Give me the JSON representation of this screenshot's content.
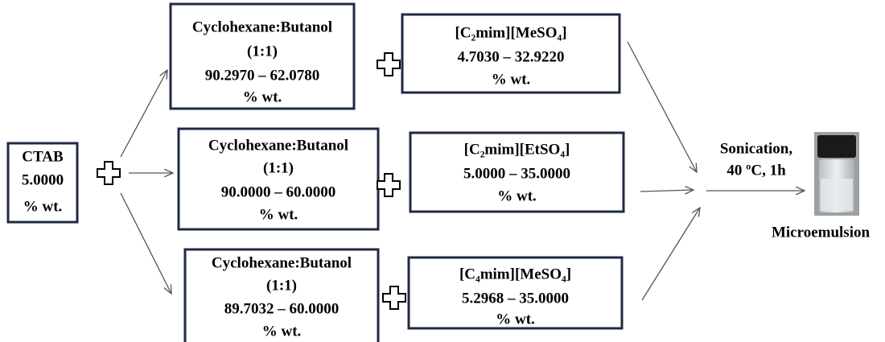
{
  "surfactant": {
    "name": "CTAB",
    "amount": "5.0000",
    "unit": "% wt."
  },
  "rows": [
    {
      "oil": {
        "name": "Cyclohexane:Butanol",
        "ratio": "(1:1)",
        "range": "90.2970 – 62.0780",
        "unit": "% wt."
      },
      "ionic_liquid": {
        "name": "[C₂mim][MeSO₄]",
        "range": "4.7030 – 32.9220",
        "unit": "% wt."
      }
    },
    {
      "oil": {
        "name": "Cyclohexane:Butanol",
        "ratio": "(1:1)",
        "range": "90.0000 – 60.0000",
        "unit": "% wt."
      },
      "ionic_liquid": {
        "name": "[C₂mim][EtSO₄]",
        "range": "5.0000 – 35.0000",
        "unit": "% wt."
      }
    },
    {
      "oil": {
        "name": "Cyclohexane:Butanol",
        "ratio": "(1:1)",
        "range": "89.7032 – 60.0000",
        "unit": "% wt."
      },
      "ionic_liquid": {
        "name": "[C₄mim][MeSO₄]",
        "range": "5.2968 – 35.0000",
        "unit": "% wt."
      }
    }
  ],
  "process": {
    "step": "Sonication,",
    "conditions": "40 ºC, 1h"
  },
  "product": "Microemulsion"
}
